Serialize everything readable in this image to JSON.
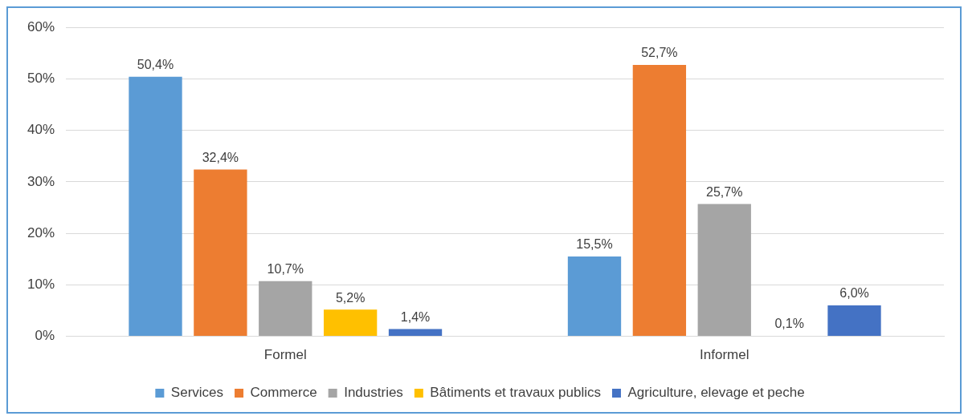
{
  "chart_data": {
    "type": "bar",
    "categories": [
      "Formel",
      "Informel"
    ],
    "series": [
      {
        "name": "Services",
        "color": "#5b9bd5",
        "values": [
          50.4,
          15.5
        ],
        "value_labels": [
          "50,4%",
          "15,5%"
        ]
      },
      {
        "name": "Commerce",
        "color": "#ed7d31",
        "values": [
          32.4,
          52.7
        ],
        "value_labels": [
          "32,4%",
          "52,7%"
        ]
      },
      {
        "name": "Industries",
        "color": "#a5a5a5",
        "values": [
          10.7,
          25.7
        ],
        "value_labels": [
          "10,7%",
          "25,7%"
        ]
      },
      {
        "name": "Bâtiments et travaux publics",
        "color": "#ffc000",
        "values": [
          5.2,
          0.1
        ],
        "value_labels": [
          "5,2%",
          "0,1%"
        ]
      },
      {
        "name": "Agriculture, elevage et peche",
        "color": "#4472c4",
        "values": [
          1.4,
          6.0
        ],
        "value_labels": [
          "1,4%",
          "6,0%"
        ]
      }
    ],
    "ylim": [
      0,
      60
    ],
    "yticks": [
      {
        "value": 0,
        "label": "0%"
      },
      {
        "value": 10,
        "label": "10%"
      },
      {
        "value": 20,
        "label": "20%"
      },
      {
        "value": 30,
        "label": "30%"
      },
      {
        "value": 40,
        "label": "40%"
      },
      {
        "value": 50,
        "label": "50%"
      },
      {
        "value": 60,
        "label": "60%"
      }
    ],
    "grid": "y",
    "legend": "bottom"
  }
}
